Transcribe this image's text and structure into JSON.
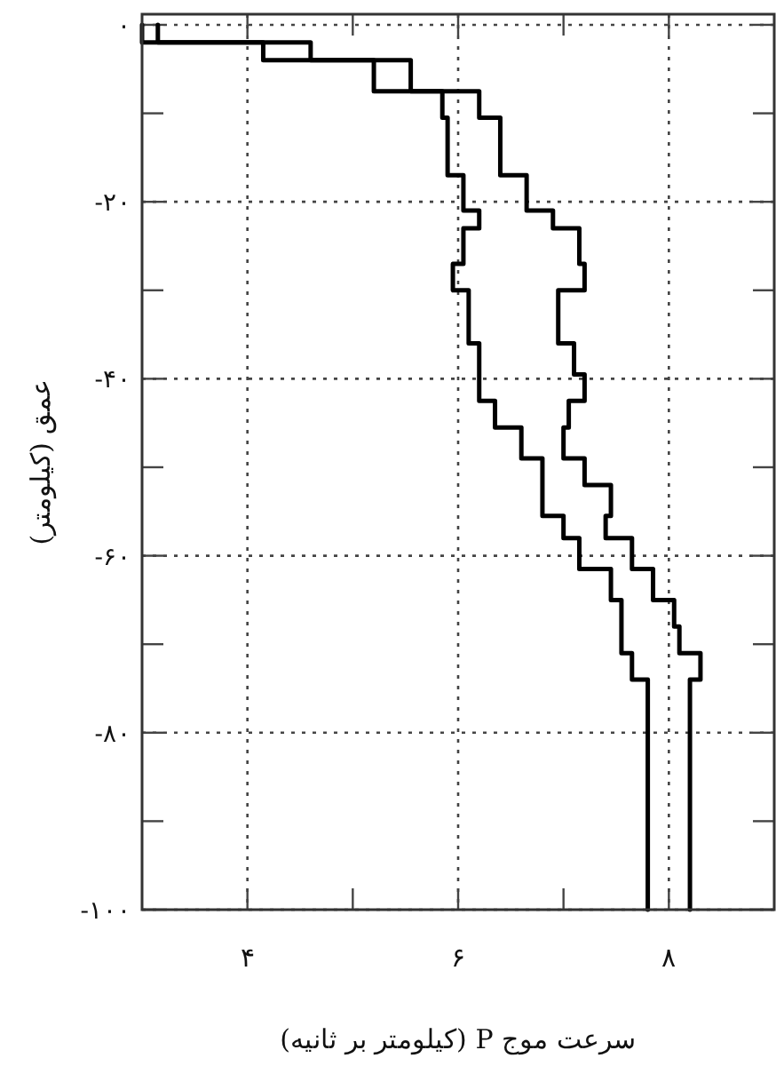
{
  "chart_data": {
    "type": "line",
    "xlabel": "سرعت موج P (کیلومتر بر ثانیه)",
    "ylabel": "عمق (کیلومتر)",
    "xlim": [
      3,
      9
    ],
    "ylim": [
      -100,
      1.2
    ],
    "xticks": [
      {
        "value": 4,
        "label": "۴"
      },
      {
        "value": 5,
        "label": null
      },
      {
        "value": 6,
        "label": "۶"
      },
      {
        "value": 7,
        "label": null
      },
      {
        "value": 8,
        "label": "۸"
      }
    ],
    "yticks": [
      {
        "value": 0,
        "label": "۰"
      },
      {
        "value": -10,
        "label": null
      },
      {
        "value": -20,
        "label": "-۲۰"
      },
      {
        "value": -30,
        "label": null
      },
      {
        "value": -40,
        "label": "-۴۰"
      },
      {
        "value": -50,
        "label": null
      },
      {
        "value": -60,
        "label": "-۶۰"
      },
      {
        "value": -70,
        "label": null
      },
      {
        "value": -80,
        "label": "-۸۰"
      },
      {
        "value": -90,
        "label": null
      },
      {
        "value": -100,
        "label": "-۱۰۰"
      }
    ],
    "grid": true,
    "line_style": "solid",
    "marker": "none",
    "series": [
      {
        "color": "#000000",
        "x": [
          3.0,
          3.0,
          4.15,
          4.15,
          5.2,
          5.2,
          5.85,
          5.85,
          5.9,
          5.9,
          6.05,
          6.05,
          6.2,
          6.2,
          6.05,
          6.05,
          5.95,
          5.95,
          6.1,
          6.1,
          6.2,
          6.2,
          6.2,
          6.2,
          6.35,
          6.35,
          6.6,
          6.6,
          6.8,
          6.8,
          6.8,
          6.8,
          7.0,
          7.0,
          7.15,
          7.15,
          7.45,
          7.45,
          7.55,
          7.55,
          7.55,
          7.55,
          7.65,
          7.65,
          7.8,
          7.8
        ],
        "values": [
          0,
          -2,
          -2,
          -4,
          -4,
          -7.5,
          -7.5,
          -10.5,
          -10.5,
          -17,
          -17,
          -21,
          -21,
          -23,
          -23,
          -27,
          -27,
          -30,
          -30,
          -36,
          -36,
          -39.5,
          -39.5,
          -42.5,
          -42.5,
          -45.5,
          -45.5,
          -49,
          -49,
          -52,
          -52,
          -55.5,
          -55.5,
          -58,
          -58,
          -61.5,
          -61.5,
          -65,
          -65,
          -68,
          -68,
          -71,
          -71,
          -74,
          -74,
          -100
        ]
      },
      {
        "color": "#000000",
        "x": [
          3.15,
          3.15,
          4.6,
          4.6,
          5.55,
          5.55,
          6.2,
          6.2,
          6.4,
          6.4,
          6.65,
          6.65,
          6.9,
          6.9,
          7.15,
          7.15,
          7.2,
          7.2,
          6.95,
          6.95,
          7.1,
          7.1,
          7.2,
          7.2,
          7.05,
          7.05,
          7.0,
          7.0,
          7.2,
          7.2,
          7.45,
          7.45,
          7.4,
          7.4,
          7.65,
          7.65,
          7.85,
          7.85,
          8.05,
          8.05,
          8.1,
          8.1,
          8.3,
          8.3,
          8.2,
          8.2
        ],
        "values": [
          0,
          -2,
          -2,
          -4,
          -4,
          -7.5,
          -7.5,
          -10.5,
          -10.5,
          -17,
          -17,
          -21,
          -21,
          -23,
          -23,
          -27,
          -27,
          -30,
          -30,
          -36,
          -36,
          -39.5,
          -39.5,
          -42.5,
          -42.5,
          -45.5,
          -45.5,
          -49,
          -49,
          -52,
          -52,
          -55.5,
          -55.5,
          -58,
          -58,
          -61.5,
          -61.5,
          -65,
          -65,
          -68,
          -68,
          -71,
          -71,
          -74,
          -74,
          -100
        ]
      }
    ]
  }
}
